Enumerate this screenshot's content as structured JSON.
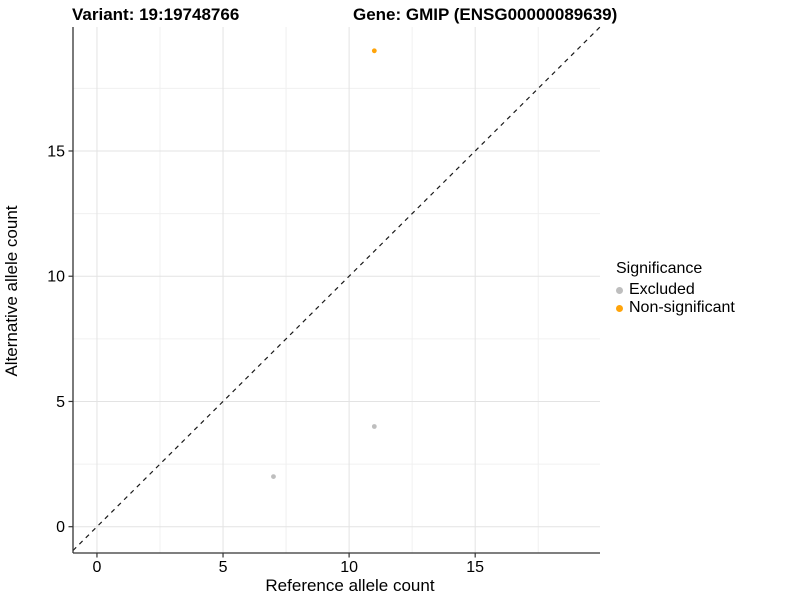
{
  "title_left": "Variant: 19:19748766",
  "title_right": "Gene: GMIP (ENSG00000089639)",
  "chart_data": {
    "type": "scatter",
    "xlabel": "Reference allele count",
    "ylabel": "Alternative allele count",
    "x_ticks": [
      0,
      5,
      10,
      15
    ],
    "y_ticks": [
      0,
      5,
      10,
      15
    ],
    "x_minor_ticks": [
      2.5,
      7.5,
      12.5,
      17.5
    ],
    "y_minor_ticks": [
      2.5,
      7.5,
      12.5,
      17.5
    ],
    "xlim": [
      -0.95,
      19.95
    ],
    "ylim": [
      -1.05,
      19.95
    ],
    "grid": "on",
    "identity_line": {
      "style": "dashed",
      "x1": -0.95,
      "y1": -0.95,
      "x2": 19.95,
      "y2": 19.95,
      "color": "#1a1a1a"
    },
    "series": [
      {
        "name": "Excluded",
        "color": "#BEBEBE",
        "points": [
          [
            7,
            2
          ],
          [
            11,
            4
          ]
        ]
      },
      {
        "name": "Non-significant",
        "color": "#FFA40A",
        "points": [
          [
            11,
            19
          ]
        ]
      }
    ],
    "legend": {
      "title": "Significance",
      "position": "right"
    }
  },
  "colors": {
    "grid_major": "#E3E3E3",
    "grid_minor": "#F0F0F0",
    "axis_line": "#333333",
    "tick_mark": "#333333",
    "tick_label": "#000000",
    "background": "#FFFFFF"
  }
}
